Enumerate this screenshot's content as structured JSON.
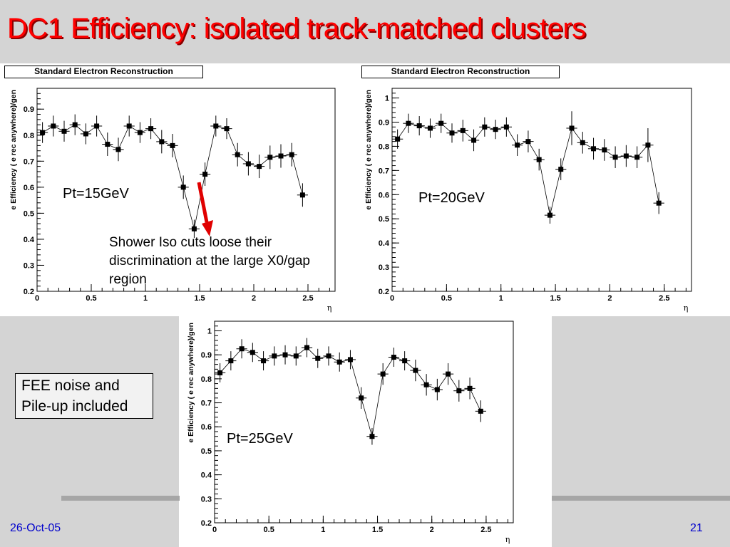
{
  "slide": {
    "title": "DC1 Efficiency: isolated track-matched clusters",
    "annotation": "Shower Iso cuts loose their discrimination at the large X0/gap region",
    "note": "FEE noise and Pile-up included",
    "date": "26-Oct-05",
    "page": "21",
    "accent_color": "#ff0000",
    "footer_color": "#0000cc"
  },
  "chart_data": [
    {
      "type": "scatter",
      "title": "Standard Electron Reconstruction",
      "label": "Pt=15GeV",
      "xlabel": "η",
      "ylabel": "e Efficiency ( e rec anywhere)/gen",
      "xlim": [
        0,
        2.75
      ],
      "ylim": [
        0.2,
        0.98
      ],
      "xticks": [
        "0",
        "0.5",
        "1",
        "1.5",
        "2",
        "2.5"
      ],
      "yticks": [
        "0.2",
        "0.3",
        "0.4",
        "0.5",
        "0.6",
        "0.7",
        "0.8",
        "0.9"
      ],
      "x": [
        0.05,
        0.15,
        0.25,
        0.35,
        0.45,
        0.55,
        0.65,
        0.75,
        0.85,
        0.95,
        1.05,
        1.15,
        1.25,
        1.35,
        1.45,
        1.55,
        1.65,
        1.75,
        1.85,
        1.95,
        2.05,
        2.15,
        2.25,
        2.35,
        2.45
      ],
      "y": [
        0.81,
        0.835,
        0.815,
        0.84,
        0.805,
        0.835,
        0.765,
        0.745,
        0.835,
        0.81,
        0.825,
        0.775,
        0.76,
        0.6,
        0.44,
        0.65,
        0.835,
        0.825,
        0.725,
        0.69,
        0.68,
        0.715,
        0.72,
        0.725,
        0.57
      ],
      "yerr": [
        0.04,
        0.04,
        0.04,
        0.04,
        0.04,
        0.04,
        0.045,
        0.045,
        0.04,
        0.04,
        0.04,
        0.045,
        0.045,
        0.045,
        0.035,
        0.045,
        0.04,
        0.04,
        0.045,
        0.045,
        0.045,
        0.045,
        0.045,
        0.045,
        0.045
      ]
    },
    {
      "type": "scatter",
      "title": "Standard Electron Reconstruction",
      "label": "Pt=20GeV",
      "xlabel": "η",
      "ylabel": "e Efficiency ( e rec anywhere)/gen",
      "xlim": [
        0,
        2.75
      ],
      "ylim": [
        0.2,
        1.04
      ],
      "xticks": [
        "0",
        "0.5",
        "1",
        "1.5",
        "2",
        "2.5"
      ],
      "yticks": [
        "0.2",
        "0.3",
        "0.4",
        "0.5",
        "0.6",
        "0.7",
        "0.8",
        "0.9",
        "1"
      ],
      "x": [
        0.05,
        0.15,
        0.25,
        0.35,
        0.45,
        0.55,
        0.65,
        0.75,
        0.85,
        0.95,
        1.05,
        1.15,
        1.25,
        1.35,
        1.45,
        1.55,
        1.65,
        1.75,
        1.85,
        1.95,
        2.05,
        2.15,
        2.25,
        2.35,
        2.45
      ],
      "y": [
        0.83,
        0.895,
        0.885,
        0.875,
        0.895,
        0.855,
        0.865,
        0.825,
        0.88,
        0.87,
        0.88,
        0.805,
        0.82,
        0.745,
        0.515,
        0.705,
        0.875,
        0.815,
        0.79,
        0.785,
        0.755,
        0.76,
        0.755,
        0.805,
        0.565
      ],
      "yerr": [
        0.04,
        0.04,
        0.04,
        0.04,
        0.04,
        0.04,
        0.045,
        0.045,
        0.04,
        0.04,
        0.04,
        0.045,
        0.045,
        0.045,
        0.035,
        0.045,
        0.07,
        0.045,
        0.045,
        0.045,
        0.045,
        0.045,
        0.045,
        0.07,
        0.045
      ]
    },
    {
      "type": "scatter",
      "title": "",
      "label": "Pt=25GeV",
      "xlabel": "η",
      "ylabel": "e Efficiency ( e rec anywhere)/gen",
      "xlim": [
        0,
        2.75
      ],
      "ylim": [
        0.2,
        1.04
      ],
      "xticks": [
        "0",
        "0.5",
        "1",
        "1.5",
        "2",
        "2.5"
      ],
      "yticks": [
        "0.2",
        "0.3",
        "0.4",
        "0.5",
        "0.6",
        "0.7",
        "0.8",
        "0.9",
        "1"
      ],
      "x": [
        0.05,
        0.15,
        0.25,
        0.35,
        0.45,
        0.55,
        0.65,
        0.75,
        0.85,
        0.95,
        1.05,
        1.15,
        1.25,
        1.35,
        1.45,
        1.55,
        1.65,
        1.75,
        1.85,
        1.95,
        2.05,
        2.15,
        2.25,
        2.35,
        2.45
      ],
      "y": [
        0.825,
        0.875,
        0.925,
        0.91,
        0.875,
        0.895,
        0.9,
        0.895,
        0.93,
        0.885,
        0.895,
        0.87,
        0.88,
        0.72,
        0.56,
        0.82,
        0.89,
        0.875,
        0.835,
        0.775,
        0.755,
        0.82,
        0.75,
        0.76,
        0.665
      ],
      "yerr": [
        0.04,
        0.04,
        0.04,
        0.04,
        0.04,
        0.04,
        0.04,
        0.04,
        0.04,
        0.04,
        0.04,
        0.04,
        0.04,
        0.045,
        0.035,
        0.045,
        0.04,
        0.04,
        0.045,
        0.045,
        0.045,
        0.045,
        0.045,
        0.045,
        0.045
      ]
    }
  ]
}
